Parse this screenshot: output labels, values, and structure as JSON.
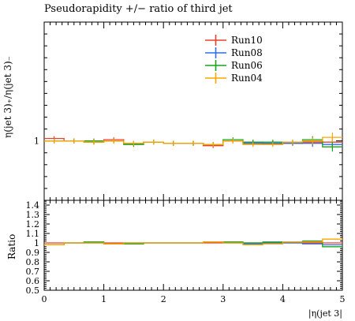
{
  "title": "Pseudorapidity +/− ratio of third jet",
  "chart_data": [
    {
      "type": "line",
      "title": "Pseudorapidity +/− ratio of third jet",
      "ylabel": "η(jet 3)₊/η(jet 3)₋",
      "xlabel": "",
      "ylim": [
        0.5,
        2.0
      ],
      "xlim": [
        0,
        5
      ],
      "ytick_labels": [
        "1"
      ],
      "legend": {
        "placement": "top-center"
      },
      "grid": false,
      "x_edges": [
        0,
        0.333,
        0.667,
        1.0,
        1.333,
        1.667,
        2.0,
        2.333,
        2.667,
        3.0,
        3.333,
        3.667,
        4.0,
        4.333,
        4.667,
        5.0
      ],
      "series": [
        {
          "name": "Run10",
          "color": "#e8412b",
          "values": [
            1.02,
            1.0,
            0.99,
            1.01,
            0.98,
            0.99,
            0.98,
            0.98,
            0.96,
            1.0,
            0.99,
            0.98,
            0.98,
            0.99,
            0.99
          ],
          "errors": [
            0.02,
            0.02,
            0.02,
            0.02,
            0.02,
            0.02,
            0.02,
            0.02,
            0.02,
            0.02,
            0.02,
            0.02,
            0.02,
            0.03,
            0.04
          ]
        },
        {
          "name": "Run08",
          "color": "#2f6ee8",
          "values": [
            1.0,
            1.0,
            0.99,
            1.0,
            0.98,
            0.99,
            0.98,
            0.98,
            0.97,
            1.0,
            0.98,
            0.98,
            0.98,
            0.98,
            0.97
          ],
          "errors": [
            0.02,
            0.02,
            0.02,
            0.02,
            0.02,
            0.02,
            0.02,
            0.02,
            0.02,
            0.02,
            0.02,
            0.02,
            0.02,
            0.03,
            0.04
          ]
        },
        {
          "name": "Run06",
          "color": "#19a319",
          "values": [
            1.0,
            1.0,
            1.0,
            1.0,
            0.97,
            0.99,
            0.98,
            0.98,
            0.97,
            1.01,
            0.99,
            0.99,
            0.99,
            1.01,
            0.95
          ],
          "errors": [
            0.02,
            0.02,
            0.02,
            0.02,
            0.02,
            0.02,
            0.02,
            0.02,
            0.02,
            0.02,
            0.02,
            0.02,
            0.02,
            0.03,
            0.04
          ]
        },
        {
          "name": "Run04",
          "color": "#ffa500",
          "values": [
            1.0,
            1.0,
            0.99,
            1.0,
            0.98,
            0.99,
            0.98,
            0.98,
            0.97,
            1.0,
            0.97,
            0.97,
            0.99,
            1.0,
            1.03
          ],
          "errors": [
            0.02,
            0.02,
            0.02,
            0.02,
            0.02,
            0.02,
            0.02,
            0.02,
            0.02,
            0.02,
            0.02,
            0.02,
            0.02,
            0.03,
            0.04
          ]
        }
      ]
    },
    {
      "type": "line",
      "ylabel": "Ratio",
      "xlabel": "|η(jet 3|",
      "ylim": [
        0.5,
        1.45
      ],
      "xlim": [
        0,
        5
      ],
      "ytick_labels": [
        "1.4",
        "1.3",
        "1.2",
        "1.1",
        "1",
        "0.9",
        "0.8",
        "0.7",
        "0.6",
        "0.5"
      ],
      "ytick_values": [
        1.4,
        1.3,
        1.2,
        1.1,
        1.0,
        0.9,
        0.8,
        0.7,
        0.6,
        0.5
      ],
      "xtick_labels": [
        "0",
        "1",
        "2",
        "3",
        "4",
        "5"
      ],
      "xtick_values": [
        0,
        1,
        2,
        3,
        4,
        5
      ],
      "series": [
        {
          "name": "Run10",
          "color": "#e8412b",
          "values": [
            1.0,
            1.0,
            1.0,
            1.0,
            1.0,
            1.0,
            1.0,
            1.0,
            1.0,
            1.0,
            1.0,
            1.0,
            1.0,
            1.0,
            1.0
          ]
        },
        {
          "name": "Run08",
          "color": "#2f6ee8",
          "values": [
            0.98,
            1.0,
            1.0,
            0.99,
            1.0,
            1.0,
            1.0,
            1.0,
            1.01,
            1.0,
            0.99,
            1.0,
            1.0,
            0.99,
            0.98
          ]
        },
        {
          "name": "Run06",
          "color": "#19a319",
          "values": [
            0.98,
            1.0,
            1.01,
            0.99,
            0.99,
            1.0,
            1.0,
            1.0,
            1.01,
            1.01,
            1.0,
            1.01,
            1.01,
            1.02,
            0.96
          ]
        },
        {
          "name": "Run04",
          "color": "#ffa500",
          "values": [
            0.98,
            1.0,
            1.0,
            0.99,
            1.0,
            1.0,
            1.0,
            1.0,
            1.01,
            1.0,
            0.98,
            0.99,
            1.01,
            1.01,
            1.04
          ]
        }
      ]
    }
  ]
}
